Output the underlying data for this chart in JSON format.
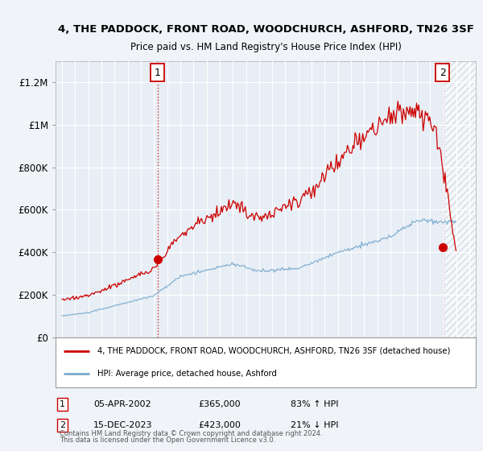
{
  "title": "4, THE PADDOCK, FRONT ROAD, WOODCHURCH, ASHFORD, TN26 3SF",
  "subtitle": "Price paid vs. HM Land Registry's House Price Index (HPI)",
  "background_color": "#f0f4f8",
  "plot_bg_color": "#e8eef5",
  "red_line_color": "#cc0000",
  "blue_line_color": "#7aabcf",
  "ylim": [
    0,
    1300000
  ],
  "yticks": [
    0,
    200000,
    400000,
    600000,
    800000,
    1000000,
    1200000
  ],
  "ytick_labels": [
    "£0",
    "£200K",
    "£400K",
    "£600K",
    "£800K",
    "£1M",
    "£1.2M"
  ],
  "xmin": 1994.5,
  "xmax": 2026.5,
  "sale1_year": 2002.27,
  "sale1_price": 365000,
  "sale2_year": 2023.96,
  "sale2_price": 423000,
  "sale1_date": "05-APR-2002",
  "sale1_pct": "83% ↑ HPI",
  "sale2_date": "15-DEC-2023",
  "sale2_pct": "21% ↓ HPI",
  "legend_label1": "4, THE PADDOCK, FRONT ROAD, WOODCHURCH, ASHFORD, TN26 3SF (detached house)",
  "legend_label2": "HPI: Average price, detached house, Ashford",
  "footer1": "Contains HM Land Registry data © Crown copyright and database right 2024.",
  "footer2": "This data is licensed under the Open Government Licence v3.0."
}
